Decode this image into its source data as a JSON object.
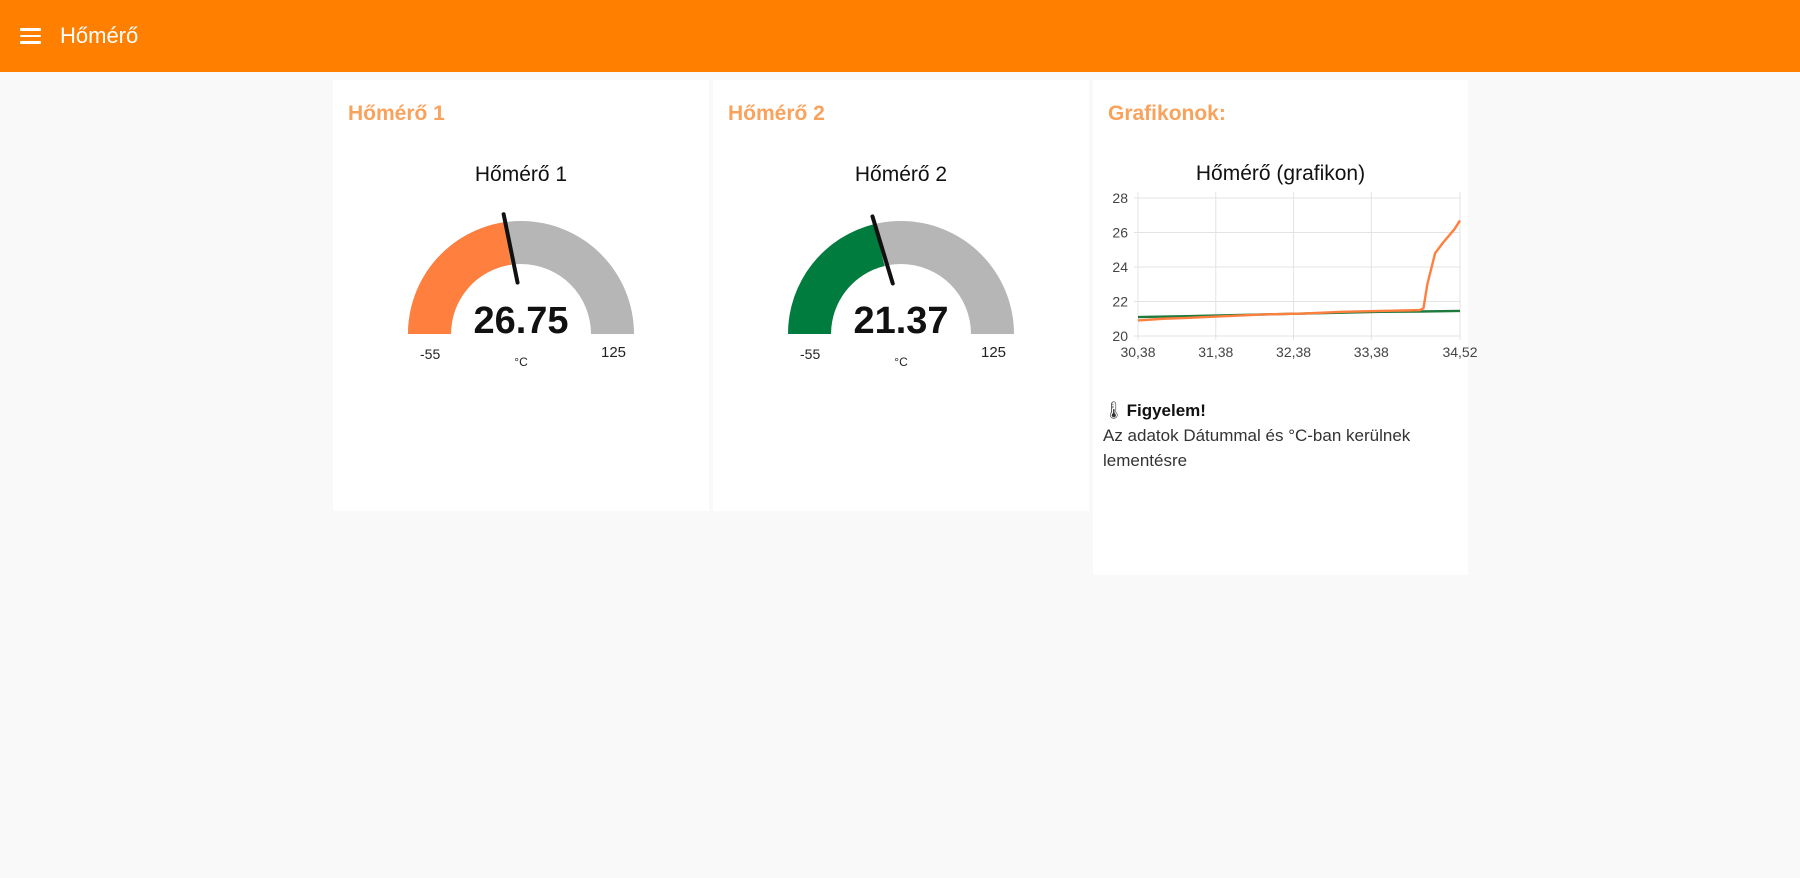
{
  "header": {
    "title": "Hőmérő"
  },
  "gauges": [
    {
      "card_title": "Hőmérő 1",
      "title": "Hőmérő 1",
      "value": 26.75,
      "value_text": "26.75",
      "unit": "°C",
      "min": "-55",
      "max": "125",
      "min_value": -55,
      "max_value": 125,
      "color": "#ff7f3f"
    },
    {
      "card_title": "Hőmérő 2",
      "title": "Hőmérő 2",
      "value": 21.37,
      "value_text": "21.37",
      "unit": "°C",
      "min": "-55",
      "max": "125",
      "min_value": -55,
      "max_value": 125,
      "color": "#007c3e"
    }
  ],
  "chart_card": {
    "card_title": "Grafikonok:",
    "notice_title": "Figyelem!",
    "notice_text": "Az adatok Dátummal és °C-ban kerülnek lementésre"
  },
  "chart_data": {
    "type": "line",
    "title": "Hőmérő (grafikon)",
    "xlabel": "",
    "ylabel": "",
    "ylim": [
      20,
      28
    ],
    "xlim": [
      30.38,
      34.52
    ],
    "x_ticks": [
      "30,38",
      "31,38",
      "32,38",
      "33,38",
      "34,52"
    ],
    "y_ticks": [
      "20",
      "22",
      "24",
      "26",
      "28"
    ],
    "grid": true,
    "series": [
      {
        "color": "#1f7a3e",
        "x": [
          30.38,
          31.0,
          31.5,
          32.0,
          32.5,
          33.0,
          33.5,
          34.0,
          34.52
        ],
        "y": [
          21.1,
          21.15,
          21.2,
          21.25,
          21.3,
          21.35,
          21.4,
          21.42,
          21.45
        ]
      },
      {
        "color": "#ff7f3f",
        "x": [
          30.38,
          30.7,
          31.0,
          31.5,
          32.0,
          32.5,
          33.0,
          33.5,
          34.0,
          34.05,
          34.1,
          34.2,
          34.3,
          34.45,
          34.52
        ],
        "y": [
          20.9,
          21.0,
          21.05,
          21.15,
          21.25,
          21.3,
          21.4,
          21.45,
          21.5,
          21.6,
          23.0,
          24.8,
          25.4,
          26.2,
          26.7
        ]
      }
    ]
  }
}
